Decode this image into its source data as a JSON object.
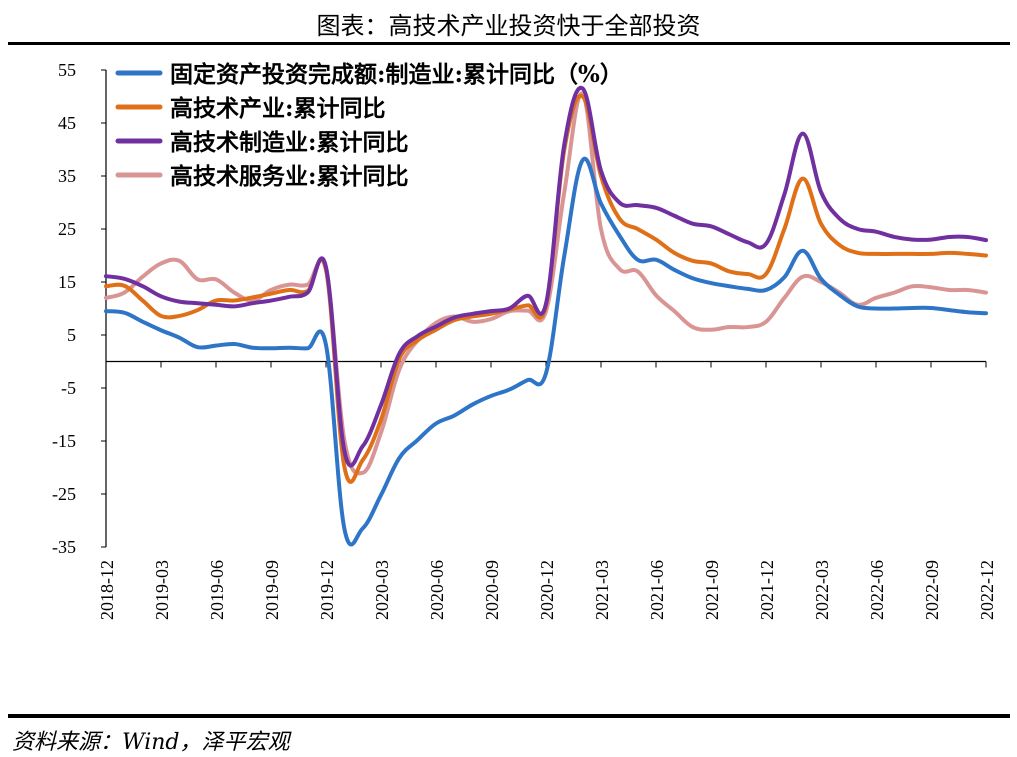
{
  "title": "图表：高技术产业投资快于全部投资",
  "source": "资料来源：Wind，泽平宏观",
  "chart_data": {
    "type": "line",
    "yticks": [
      55,
      45,
      35,
      25,
      15,
      5,
      -5,
      -15,
      -25,
      -35
    ],
    "ylim": [
      -35,
      55
    ],
    "xticks": [
      "2018-12",
      "2019-03",
      "2019-06",
      "2019-09",
      "2019-12",
      "2020-03",
      "2020-06",
      "2020-09",
      "2020-12",
      "2021-03",
      "2021-06",
      "2021-09",
      "2021-12",
      "2022-03",
      "2022-06",
      "2022-09",
      "2022-12"
    ],
    "x": [
      "2018-12",
      "2019-01",
      "2019-02",
      "2019-03",
      "2019-04",
      "2019-05",
      "2019-06",
      "2019-07",
      "2019-08",
      "2019-09",
      "2019-10",
      "2019-11",
      "2019-12",
      "2020-01",
      "2020-02",
      "2020-03",
      "2020-04",
      "2020-05",
      "2020-06",
      "2020-07",
      "2020-08",
      "2020-09",
      "2020-10",
      "2020-11",
      "2020-12",
      "2021-01",
      "2021-02",
      "2021-03",
      "2021-04",
      "2021-05",
      "2021-06",
      "2021-07",
      "2021-08",
      "2021-09",
      "2021-10",
      "2021-11",
      "2021-12",
      "2022-01",
      "2022-02",
      "2022-03",
      "2022-04",
      "2022-05",
      "2022-06",
      "2022-07",
      "2022-08",
      "2022-09",
      "2022-10",
      "2022-11",
      "2022-12"
    ],
    "series": [
      {
        "name": "固定资产投资完成额:制造业:累计同比（%）",
        "color": "#2e75c8",
        "values": [
          9.5,
          9.2,
          7.5,
          5.9,
          4.5,
          2.7,
          3.0,
          3.3,
          2.6,
          2.5,
          2.6,
          2.5,
          3.1,
          -31.5,
          -31.5,
          -25.2,
          -18.2,
          -14.8,
          -11.7,
          -10.2,
          -8.1,
          -6.5,
          -5.3,
          -3.5,
          -2.2,
          20.0,
          38.0,
          29.8,
          23.8,
          19.2,
          19.2,
          17.3,
          15.7,
          14.8,
          14.2,
          13.7,
          13.5,
          15.9,
          20.9,
          15.6,
          12.6,
          10.4,
          10.0,
          10.0,
          10.1,
          10.1,
          9.7,
          9.3,
          9.1
        ]
      },
      {
        "name": "高技术产业:累计同比",
        "color": "#e07018",
        "values": [
          14.2,
          14.3,
          11.5,
          8.6,
          8.6,
          9.7,
          11.5,
          11.5,
          12.1,
          12.8,
          13.5,
          13.3,
          17.3,
          -19.8,
          -18.6,
          -11.0,
          0.5,
          4.0,
          6.0,
          7.8,
          8.5,
          9.0,
          9.8,
          10.6,
          10.6,
          40.0,
          50.0,
          35.0,
          27.0,
          25.0,
          23.0,
          20.5,
          19.0,
          18.5,
          17.0,
          16.5,
          16.5,
          25.0,
          34.5,
          26.0,
          22.0,
          20.5,
          20.3,
          20.3,
          20.3,
          20.3,
          20.5,
          20.3,
          20.0
        ]
      },
      {
        "name": "高技术制造业:累计同比",
        "color": "#7030a0",
        "values": [
          16.1,
          15.6,
          14.2,
          12.3,
          11.3,
          11.0,
          10.7,
          10.4,
          11.0,
          11.5,
          12.2,
          13.0,
          17.8,
          -16.8,
          -16.0,
          -8.2,
          1.5,
          4.8,
          6.6,
          8.3,
          9.0,
          9.5,
          10.0,
          12.4,
          10.9,
          41.0,
          51.5,
          36.0,
          30.0,
          29.5,
          29.0,
          27.5,
          26.0,
          25.5,
          24.0,
          22.5,
          22.2,
          31.5,
          43.0,
          32.0,
          27.0,
          25.0,
          24.5,
          23.5,
          23.0,
          23.0,
          23.5,
          23.5,
          22.9
        ]
      },
      {
        "name": "高技术服务业:累计同比",
        "color": "#d99594",
        "values": [
          12.0,
          13.0,
          16.0,
          18.5,
          19.0,
          15.5,
          15.5,
          13.0,
          11.5,
          13.5,
          14.5,
          14.5,
          17.3,
          -14.8,
          -21.0,
          -13.4,
          -1.5,
          4.0,
          7.3,
          8.5,
          7.5,
          8.0,
          9.5,
          9.6,
          9.5,
          32.0,
          50.5,
          25.0,
          17.5,
          17.0,
          12.5,
          9.5,
          6.5,
          6.0,
          6.5,
          6.5,
          7.5,
          12.0,
          16.0,
          15.0,
          13.0,
          10.7,
          12.0,
          13.0,
          14.2,
          14.0,
          13.5,
          13.5,
          13.0
        ]
      }
    ]
  }
}
